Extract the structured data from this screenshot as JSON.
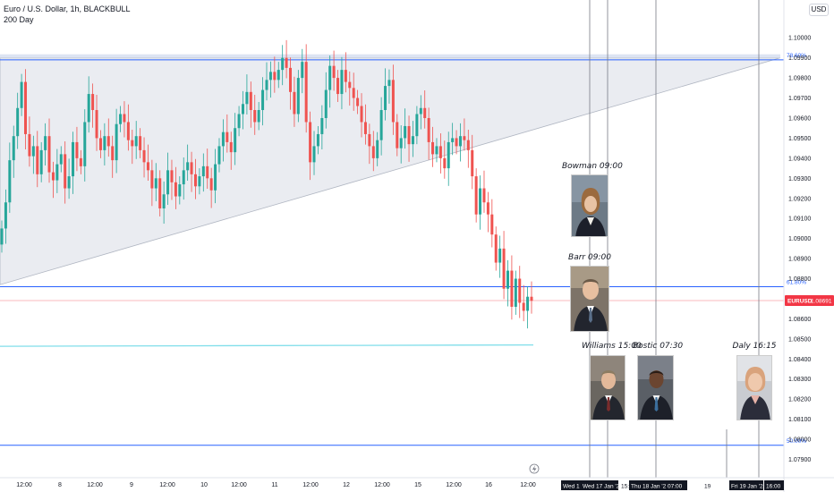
{
  "header": {
    "symbol_line": "Euro / U.S. Dollar, 1h, BLACKBULL",
    "indicator_line": "200 Day",
    "currency_button": "USD"
  },
  "colors": {
    "up": "#26a69a",
    "down": "#ef5350",
    "triangle_fill": "#e3e6ec",
    "fib_line": "#2962ff",
    "ma_line": "#80deea",
    "price_tag": "#f23645",
    "event_line": "#787b86"
  },
  "chart_data": {
    "type": "candlestick",
    "instrument": "EURUSD",
    "timeframe": "1h",
    "ylim": [
      1.0788,
      1.1005
    ],
    "price_ticks": [
      "1.10000",
      "1.09900",
      "1.09800",
      "1.09700",
      "1.09600",
      "1.09500",
      "1.09400",
      "1.09300",
      "1.09200",
      "1.09100",
      "1.09000",
      "1.08900",
      "1.08800",
      "1.08700",
      "1.08600",
      "1.08500",
      "1.08400",
      "1.08300",
      "1.08200",
      "1.08100",
      "1.08000",
      "1.07900"
    ],
    "x_ticks": [
      "12:00",
      "8",
      "12:00",
      "9",
      "12:00",
      "10",
      "12:00",
      "11",
      "12:00",
      "12",
      "12:00",
      "15",
      "12:00",
      "16",
      "12:00"
    ],
    "x_ticks_right": [
      "Wed 1",
      "Wed 17 Jan '24",
      "15:(",
      "Thu 18 Jan '24",
      "07:00",
      "19",
      "Fri 19 Jan '24",
      "16:00"
    ],
    "last_price": {
      "symbol": "EURUSD",
      "value": "1.08691"
    },
    "fib_levels": [
      {
        "label": "78.60%",
        "price": 1.0989
      },
      {
        "label": "61.80%",
        "price": 1.0876
      },
      {
        "label": "50.00%",
        "price": 1.0797
      }
    ],
    "moving_average": {
      "name": "200 Day",
      "price": 1.0847
    },
    "triangle": {
      "upper_price": 1.099,
      "apex_price": 1.099,
      "lower_start_price": 1.0877
    },
    "closes": [
      1.0905,
      1.0918,
      1.0939,
      1.0951,
      1.0965,
      1.0978,
      1.0952,
      1.0941,
      1.0946,
      1.0932,
      1.0944,
      1.0951,
      1.0933,
      1.0929,
      1.0937,
      1.0942,
      1.0925,
      1.0931,
      1.0948,
      1.094,
      1.0936,
      1.0958,
      1.0972,
      1.0964,
      1.095,
      1.0944,
      1.0951,
      1.0946,
      1.0939,
      1.0957,
      1.0962,
      1.0958,
      1.0949,
      1.0946,
      1.0951,
      1.0944,
      1.0938,
      1.0934,
      1.0925,
      1.093,
      1.0915,
      1.0922,
      1.0934,
      1.0928,
      1.0921,
      1.0927,
      1.0934,
      1.0938,
      1.0932,
      1.0926,
      1.0931,
      1.0936,
      1.093,
      1.0924,
      1.0937,
      1.0946,
      1.0953,
      1.0948,
      1.0943,
      1.0955,
      1.0962,
      1.0967,
      1.0973,
      1.0964,
      1.0958,
      1.0964,
      1.0974,
      1.0979,
      1.0983,
      1.0979,
      1.0984,
      1.099,
      1.0985,
      1.0973,
      1.0962,
      1.098,
      1.0988,
      1.0958,
      1.0938,
      1.0946,
      1.0952,
      1.096,
      1.0974,
      1.0986,
      1.098,
      1.0972,
      1.0984,
      1.0978,
      1.0975,
      1.097,
      1.0966,
      1.0958,
      1.0952,
      1.0946,
      1.094,
      1.0949,
      1.0964,
      1.0976,
      1.0979,
      1.0958,
      1.0945,
      1.095,
      1.0956,
      1.0947,
      1.0951,
      1.0962,
      1.0965,
      1.096,
      1.0948,
      1.0942,
      1.0946,
      1.094,
      1.0935,
      1.0948,
      1.095,
      1.0946,
      1.0951,
      1.0949,
      1.0944,
      1.0931,
      1.0912,
      1.0925,
      1.0918,
      1.0912,
      1.0902,
      1.0888,
      1.0895,
      1.0875,
      1.0884,
      1.0866,
      1.088,
      1.0868,
      1.0864,
      1.0871,
      1.0869
    ],
    "events": [
      {
        "label": "Bowman 09:00",
        "price_label_pos": "above-chart-right"
      },
      {
        "label": "Barr 09:00"
      },
      {
        "label": "Williams 15:00"
      },
      {
        "label": "Bostic 07:30"
      },
      {
        "label": "Daly 16:15"
      }
    ]
  }
}
